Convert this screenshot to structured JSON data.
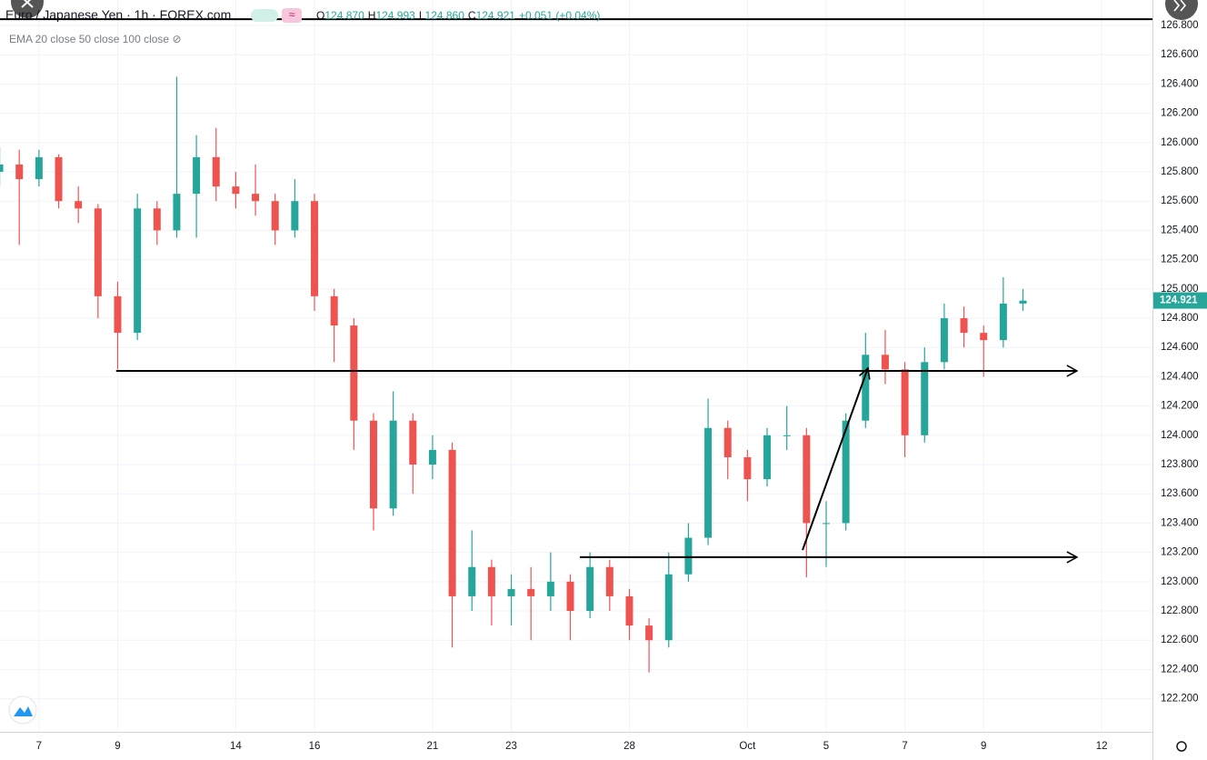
{
  "header": {
    "symbol": "Euro / Japanese Yen · 1h · FOREX.com",
    "ohlc": [
      "O",
      "124.870",
      "H",
      "124.993",
      "L",
      "124.860",
      "C",
      "124.921",
      "+0.051 (+0.04%)"
    ],
    "indicators": "EMA 20 close 50 close 100 close"
  },
  "chart_data": {
    "type": "candlestick",
    "x": [
      -1,
      -0.5,
      0,
      0.5,
      1,
      1.5,
      2,
      2.5,
      3,
      3.5,
      4,
      4.5,
      5,
      5.5,
      6,
      6.5,
      7,
      7.5,
      8,
      8.5,
      9,
      9.5,
      10,
      10.5,
      11,
      11.5,
      12,
      12.5,
      13,
      13.5,
      14,
      14.5,
      15,
      15.5,
      16,
      16.5,
      17,
      17.5,
      18,
      18.5,
      19,
      19.5,
      20,
      20.5,
      21,
      21.5,
      22,
      22.5,
      23,
      23.5,
      24,
      24.5,
      25
    ],
    "open": [
      125.8,
      125.85,
      125.75,
      125.9,
      125.6,
      125.55,
      124.95,
      124.7,
      125.55,
      125.4,
      125.65,
      125.9,
      125.7,
      125.65,
      125.6,
      125.4,
      125.6,
      124.95,
      124.75,
      124.1,
      123.5,
      124.1,
      123.8,
      123.9,
      122.9,
      123.1,
      122.9,
      122.95,
      122.9,
      123.0,
      122.8,
      123.1,
      122.9,
      122.7,
      122.6,
      123.05,
      123.3,
      124.05,
      123.85,
      123.7,
      124.0,
      124.0,
      123.4,
      123.4,
      124.1,
      124.55,
      124.45,
      124.0,
      124.5,
      124.8,
      124.7,
      124.65,
      124.9
    ],
    "high": [
      125.97,
      125.95,
      125.95,
      125.92,
      125.7,
      125.58,
      125.05,
      125.65,
      125.6,
      126.45,
      126.05,
      126.1,
      125.8,
      125.85,
      125.65,
      125.75,
      125.65,
      125.0,
      124.8,
      124.15,
      124.3,
      124.15,
      124.0,
      123.95,
      123.35,
      123.15,
      123.05,
      123.1,
      123.2,
      123.05,
      123.2,
      123.15,
      122.95,
      122.75,
      123.2,
      123.4,
      124.25,
      124.1,
      123.9,
      124.05,
      124.2,
      124.05,
      123.55,
      124.15,
      124.7,
      124.72,
      124.5,
      124.6,
      124.9,
      124.88,
      124.75,
      125.08,
      125.0
    ],
    "low": [
      125.7,
      125.3,
      125.7,
      125.55,
      125.45,
      124.8,
      124.45,
      124.65,
      125.3,
      125.35,
      125.35,
      125.6,
      125.55,
      125.5,
      125.3,
      125.35,
      124.85,
      124.5,
      123.9,
      123.35,
      123.45,
      123.6,
      123.7,
      122.55,
      122.8,
      122.7,
      122.7,
      122.6,
      122.8,
      122.6,
      122.75,
      122.8,
      122.6,
      122.38,
      122.55,
      123.0,
      123.25,
      123.7,
      123.55,
      123.65,
      123.9,
      123.03,
      123.1,
      123.35,
      124.05,
      124.35,
      123.85,
      123.95,
      124.45,
      124.6,
      124.4,
      124.6,
      124.85
    ],
    "close": [
      125.85,
      125.75,
      125.9,
      125.6,
      125.55,
      124.95,
      124.7,
      125.55,
      125.4,
      125.65,
      125.9,
      125.7,
      125.65,
      125.6,
      125.4,
      125.6,
      124.95,
      124.75,
      124.1,
      123.5,
      124.1,
      123.8,
      123.9,
      122.9,
      123.1,
      122.9,
      122.95,
      122.9,
      123.0,
      122.8,
      123.1,
      122.9,
      122.7,
      122.6,
      123.05,
      123.3,
      124.05,
      123.85,
      123.7,
      124.0,
      124.0,
      123.4,
      123.4,
      124.1,
      124.55,
      124.45,
      124.0,
      124.5,
      124.8,
      124.7,
      124.65,
      124.9,
      124.92
    ],
    "up_color": "#26a69a",
    "down_color": "#ef5350",
    "xlim": [
      -0.99,
      28.29
    ],
    "ylim": [
      121.974,
      126.974
    ],
    "xticks": [
      {
        "value": 0,
        "label": "7"
      },
      {
        "value": 2,
        "label": "9"
      },
      {
        "value": 5,
        "label": "14"
      },
      {
        "value": 7,
        "label": "16"
      },
      {
        "value": 10,
        "label": "21"
      },
      {
        "value": 12,
        "label": "23"
      },
      {
        "value": 15,
        "label": "28"
      },
      {
        "value": 18,
        "label": "Oct"
      },
      {
        "value": 20,
        "label": "5"
      },
      {
        "value": 22,
        "label": "7"
      },
      {
        "value": 24,
        "label": "9"
      },
      {
        "value": 27,
        "label": "12"
      }
    ],
    "yticks": [
      {
        "value": 122.2,
        "label": "122.200"
      },
      {
        "value": 122.4,
        "label": "122.400"
      },
      {
        "value": 122.6,
        "label": "122.600"
      },
      {
        "value": 122.8,
        "label": "122.800"
      },
      {
        "value": 123.0,
        "label": "123.000"
      },
      {
        "value": 123.2,
        "label": "123.200"
      },
      {
        "value": 123.4,
        "label": "123.400"
      },
      {
        "value": 123.6,
        "label": "123.600"
      },
      {
        "value": 123.8,
        "label": "123.800"
      },
      {
        "value": 124.0,
        "label": "124.000"
      },
      {
        "value": 124.2,
        "label": "124.200"
      },
      {
        "value": 124.4,
        "label": "124.400"
      },
      {
        "value": 124.6,
        "label": "124.600"
      },
      {
        "value": 124.8,
        "label": "124.800"
      },
      {
        "value": 125.0,
        "label": "125.000"
      },
      {
        "value": 125.2,
        "label": "125.200"
      },
      {
        "value": 125.4,
        "label": "125.400"
      },
      {
        "value": 125.6,
        "label": "125.600"
      },
      {
        "value": 125.8,
        "label": "125.800"
      },
      {
        "value": 126.0,
        "label": "126.000"
      },
      {
        "value": 126.2,
        "label": "126.200"
      },
      {
        "value": 126.4,
        "label": "126.400"
      },
      {
        "value": 126.6,
        "label": "126.600"
      },
      {
        "value": 126.8,
        "label": "126.800"
      }
    ],
    "grid": true,
    "last_price": 124.921,
    "lines": [
      {
        "x": [
          -0.99,
          28.29
        ],
        "y": [
          126.843,
          126.843
        ],
        "arrow": false
      },
      {
        "x": [
          1.96,
          26.37
        ],
        "y": [
          124.44,
          124.44
        ],
        "arrow": true
      },
      {
        "x": [
          13.74,
          26.37
        ],
        "y": [
          123.167,
          123.167
        ],
        "arrow": true
      },
      {
        "x": [
          19.4,
          21.06
        ],
        "y": [
          123.216,
          124.458
        ],
        "arrow": true
      }
    ]
  }
}
